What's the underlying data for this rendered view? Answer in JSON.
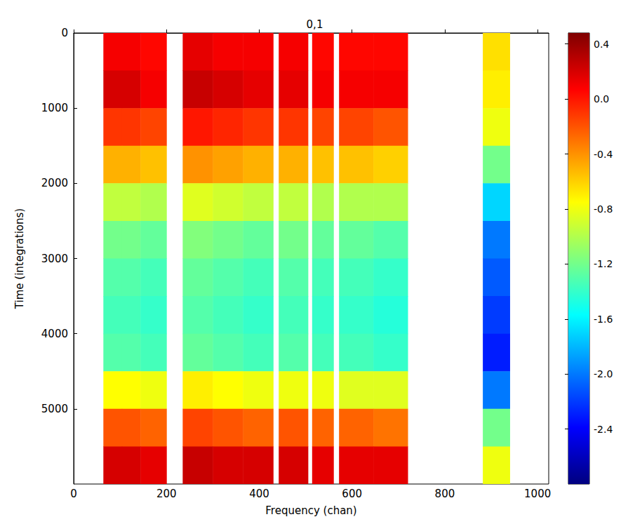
{
  "chart_data": {
    "type": "heatmap",
    "title": "0,1",
    "x_label": "Frequency (chan)",
    "y_label": "Time (integrations)",
    "xlim": [
      0,
      1024
    ],
    "xticks": [
      0,
      200,
      400,
      600,
      800,
      1000
    ],
    "ylim": [
      0,
      6000
    ],
    "yticks": [
      0,
      1000,
      2000,
      3000,
      4000,
      5000
    ],
    "x_bins": [
      64,
      104,
      144,
      200,
      235,
      300,
      365,
      430,
      442,
      505,
      514,
      560,
      572,
      646,
      720,
      882,
      940
    ],
    "y_bins": [
      0,
      500,
      1000,
      1500,
      2000,
      2500,
      3000,
      3500,
      4000,
      4500,
      5000,
      5500,
      6000
    ],
    "cells": [
      [
        0.1,
        0.1,
        0.05,
        null,
        0.15,
        0.1,
        0.1,
        null,
        0.1,
        null,
        0.05,
        null,
        0.05,
        0.05,
        null,
        -0.65
      ],
      [
        0.2,
        0.2,
        0.1,
        null,
        0.25,
        0.2,
        0.15,
        null,
        0.15,
        null,
        0.1,
        null,
        0.1,
        0.1,
        null,
        -0.7
      ],
      [
        -0.1,
        -0.1,
        -0.15,
        null,
        0,
        -0.05,
        -0.1,
        null,
        -0.1,
        null,
        -0.15,
        null,
        -0.15,
        -0.2,
        null,
        -0.8
      ],
      [
        -0.5,
        -0.5,
        -0.55,
        null,
        -0.4,
        -0.45,
        -0.5,
        null,
        -0.5,
        null,
        -0.55,
        null,
        -0.55,
        -0.6,
        null,
        -1.2
      ],
      [
        -0.95,
        -0.95,
        -1.0,
        null,
        -0.85,
        -0.9,
        -0.95,
        null,
        -0.95,
        null,
        -1.0,
        null,
        -1.0,
        -1.0,
        null,
        -1.7
      ],
      [
        -1.2,
        -1.2,
        -1.25,
        null,
        -1.15,
        -1.2,
        -1.25,
        null,
        -1.2,
        null,
        -1.25,
        null,
        -1.25,
        -1.3,
        null,
        -2.0
      ],
      [
        -1.3,
        -1.3,
        -1.35,
        null,
        -1.25,
        -1.3,
        -1.35,
        null,
        -1.3,
        null,
        -1.35,
        null,
        -1.35,
        -1.4,
        null,
        -2.1
      ],
      [
        -1.35,
        -1.35,
        -1.4,
        null,
        -1.3,
        -1.35,
        -1.4,
        null,
        -1.35,
        null,
        -1.4,
        null,
        -1.4,
        -1.45,
        null,
        -2.2
      ],
      [
        -1.3,
        -1.3,
        -1.35,
        null,
        -1.25,
        -1.3,
        -1.35,
        null,
        -1.3,
        null,
        -1.35,
        null,
        -1.35,
        -1.4,
        null,
        -2.3
      ],
      [
        -0.75,
        -0.75,
        -0.8,
        null,
        -0.7,
        -0.75,
        -0.8,
        null,
        -0.8,
        null,
        -0.8,
        null,
        -0.85,
        -0.85,
        null,
        -2.0
      ],
      [
        -0.2,
        -0.2,
        -0.25,
        null,
        -0.15,
        -0.2,
        -0.25,
        null,
        -0.2,
        null,
        -0.25,
        null,
        -0.25,
        -0.3,
        null,
        -1.2
      ],
      [
        0.2,
        0.2,
        0.15,
        null,
        0.25,
        0.2,
        0.2,
        null,
        0.2,
        null,
        0.15,
        null,
        0.15,
        0.15,
        null,
        -0.8
      ]
    ],
    "colorbar": {
      "range": [
        -2.8,
        0.48
      ],
      "ticks": [
        0.4,
        {
          "value": 0,
          "label": "0.0"
        },
        -0.4,
        -0.8,
        -1.2,
        -1.6,
        {
          "value": -2,
          "label": "-2.0"
        },
        -2.4
      ]
    }
  }
}
